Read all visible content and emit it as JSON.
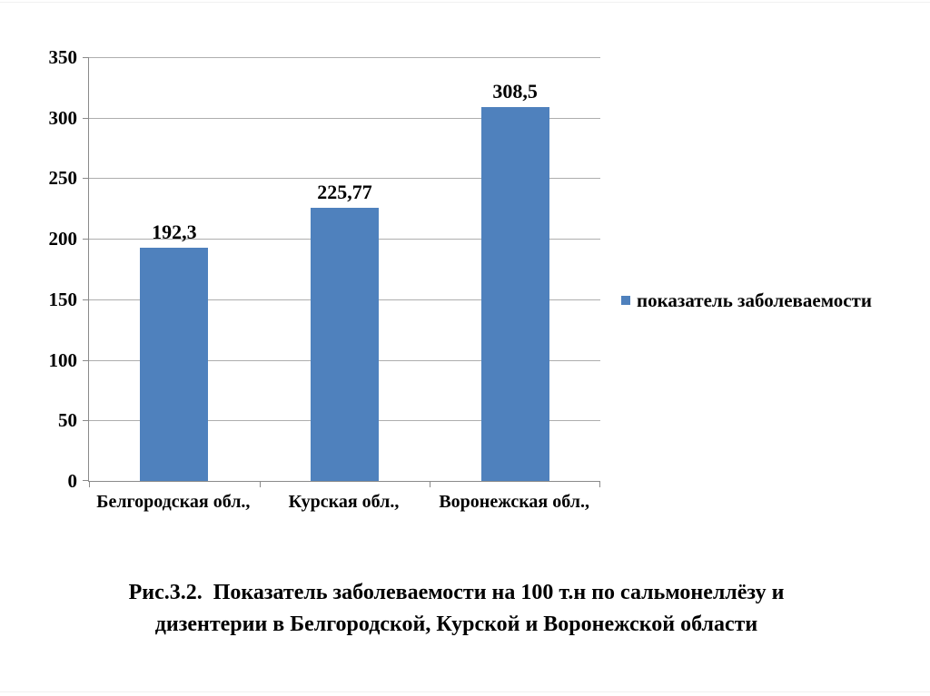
{
  "chart_data": {
    "type": "bar",
    "categories": [
      "Белгородская обл.,",
      "Курская обл.,",
      "Воронежская обл.,"
    ],
    "values": [
      192.3,
      225.77,
      308.5
    ],
    "value_labels": [
      "192,3",
      "225,77",
      "308,5"
    ],
    "series_name": "показатель заболеваемости",
    "title": "",
    "xlabel": "",
    "ylabel": "",
    "ylim": [
      0,
      350
    ],
    "yticks": [
      0,
      50,
      100,
      150,
      200,
      250,
      300,
      350
    ],
    "ytick_labels": [
      "0",
      "50",
      "100",
      "150",
      "200",
      "250",
      "300",
      "350"
    ],
    "grid": true,
    "legend_position": "right",
    "bar_color": "#4f81bd"
  },
  "caption": {
    "lines": [
      "Рис.3.2.  Показатель заболеваемости на 100 т.н по сальмонеллёзу и",
      "дизентерии в Белгородской, Курской и Воронежской области"
    ]
  },
  "colors": {
    "bar": "#4f81bd",
    "gridline": "#aeaeae",
    "axis": "#8a8a8a",
    "text": "#000000",
    "background": "#ffffff"
  }
}
